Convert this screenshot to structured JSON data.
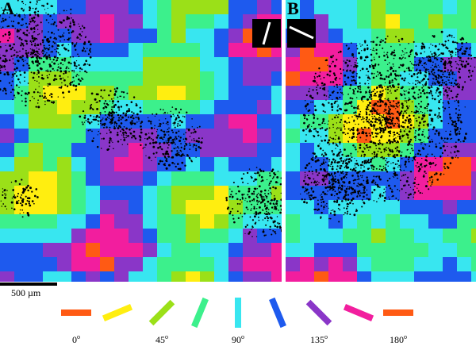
{
  "figure": {
    "panels": [
      {
        "letter": "A"
      },
      {
        "letter": "B"
      }
    ],
    "scale_bar": {
      "label": "500 µm"
    },
    "orientation_key": [
      {
        "angle": 0,
        "color": "#ff5a14"
      },
      {
        "angle": 22.5,
        "color": "#ffee10"
      },
      {
        "angle": 45,
        "color": "#9be018"
      },
      {
        "angle": 67.5,
        "color": "#3cf08c"
      },
      {
        "angle": 90,
        "color": "#38e6f0"
      },
      {
        "angle": 112.5,
        "color": "#1e5aee"
      },
      {
        "angle": 135,
        "color": "#8a36c8"
      },
      {
        "angle": 157.5,
        "color": "#f21e9e"
      },
      {
        "angle": 180,
        "color": "#ff5a14"
      }
    ],
    "key_labels": [
      {
        "text": "0",
        "unit": "o"
      },
      {
        "text": "45",
        "unit": "o"
      },
      {
        "text": "90",
        "unit": "o"
      },
      {
        "text": "135",
        "unit": "o"
      },
      {
        "text": "180",
        "unit": "o"
      }
    ]
  }
}
